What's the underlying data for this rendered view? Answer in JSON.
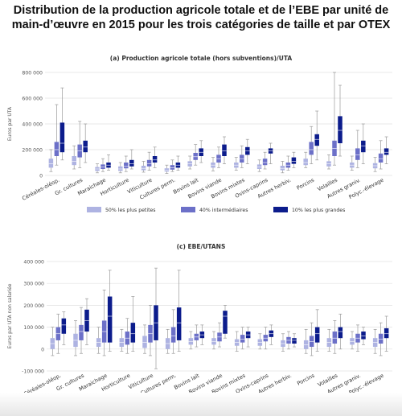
{
  "page": {
    "title_line1": "Distribution de la production agricole totale et de l’EBE par unité de",
    "title_line2": "main-d’œuvre en 2015 pour les trois catégories de taille et par OTEX"
  },
  "chart_data": [
    {
      "type": "boxplot",
      "title": "(a) Production agricole totale (hors subventions)/UTA",
      "ylabel": "Euros par UTA",
      "ylim": [
        0,
        800000
      ],
      "yticks": [
        0,
        200000,
        400000,
        600000,
        800000
      ],
      "ytick_labels": [
        "0",
        "200 000",
        "400 000",
        "600 000",
        "800 000"
      ],
      "grid": true,
      "legend_position": "bottom",
      "colors": {
        "small": "#aeb3e2",
        "mid": "#6c70c8",
        "large": "#0c1c8c"
      },
      "categories": [
        "Céréales-oléop.",
        "Gr. cultures",
        "Maraichage",
        "Horticulture",
        "Viticulture",
        "Cultures perm.",
        "Bovins lait",
        "Bovins viande",
        "Bovins mixtes",
        "Ovins-caprins",
        "Autres herbiv.",
        "Porcins",
        "Volailles",
        "Autres graniv.",
        "Polyc.-élevage"
      ],
      "series": [
        {
          "name": "50% les plus petites",
          "color_key": "small",
          "values": [
            [
              30000,
              60000,
              90000,
              130000,
              200000
            ],
            [
              50000,
              80000,
              110000,
              150000,
              230000
            ],
            [
              20000,
              35000,
              50000,
              65000,
              90000
            ],
            [
              20000,
              35000,
              50000,
              70000,
              100000
            ],
            [
              25000,
              40000,
              55000,
              75000,
              110000
            ],
            [
              15000,
              30000,
              40000,
              55000,
              80000
            ],
            [
              50000,
              70000,
              90000,
              110000,
              150000
            ],
            [
              35000,
              60000,
              80000,
              100000,
              140000
            ],
            [
              40000,
              60000,
              80000,
              100000,
              140000
            ],
            [
              30000,
              50000,
              65000,
              85000,
              120000
            ],
            [
              20000,
              40000,
              55000,
              75000,
              110000
            ],
            [
              60000,
              80000,
              100000,
              130000,
              180000
            ],
            [
              50000,
              70000,
              90000,
              110000,
              160000
            ],
            [
              40000,
              60000,
              80000,
              100000,
              150000
            ],
            [
              30000,
              55000,
              75000,
              95000,
              140000
            ]
          ]
        },
        {
          "name": "40% intermédiaires",
          "color_key": "mid",
          "values": [
            [
              80000,
              150000,
              200000,
              260000,
              550000
            ],
            [
              60000,
              140000,
              190000,
              240000,
              420000
            ],
            [
              30000,
              50000,
              65000,
              85000,
              130000
            ],
            [
              30000,
              55000,
              70000,
              100000,
              150000
            ],
            [
              40000,
              70000,
              90000,
              120000,
              180000
            ],
            [
              30000,
              45000,
              60000,
              80000,
              120000
            ],
            [
              80000,
              120000,
              145000,
              175000,
              240000
            ],
            [
              60000,
              100000,
              130000,
              160000,
              220000
            ],
            [
              60000,
              100000,
              130000,
              160000,
              230000
            ],
            [
              50000,
              80000,
              100000,
              130000,
              180000
            ],
            [
              40000,
              60000,
              80000,
              100000,
              150000
            ],
            [
              90000,
              160000,
              200000,
              260000,
              380000
            ],
            [
              80000,
              150000,
              210000,
              270000,
              800000
            ],
            [
              60000,
              120000,
              160000,
              210000,
              350000
            ],
            [
              50000,
              100000,
              130000,
              170000,
              270000
            ]
          ]
        },
        {
          "name": "10% les plus grandes",
          "color_key": "large",
          "values": [
            [
              120000,
              180000,
              250000,
              410000,
              680000
            ],
            [
              100000,
              180000,
              220000,
              270000,
              400000
            ],
            [
              40000,
              60000,
              80000,
              100000,
              160000
            ],
            [
              50000,
              70000,
              90000,
              120000,
              200000
            ],
            [
              60000,
              100000,
              120000,
              150000,
              220000
            ],
            [
              40000,
              60000,
              80000,
              100000,
              150000
            ],
            [
              100000,
              150000,
              180000,
              210000,
              270000
            ],
            [
              90000,
              150000,
              190000,
              240000,
              300000
            ],
            [
              90000,
              160000,
              190000,
              220000,
              280000
            ],
            [
              90000,
              170000,
              190000,
              210000,
              250000
            ],
            [
              60000,
              90000,
              110000,
              140000,
              180000
            ],
            [
              120000,
              230000,
              280000,
              320000,
              500000
            ],
            [
              150000,
              250000,
              350000,
              460000,
              700000
            ],
            [
              90000,
              180000,
              230000,
              270000,
              400000
            ],
            [
              90000,
              160000,
              180000,
              210000,
              300000
            ]
          ]
        }
      ]
    },
    {
      "type": "boxplot",
      "title": "(c) EBE/UTANS",
      "ylabel": "Euros par UTA non salariée",
      "ylim": [
        -100000,
        400000
      ],
      "yticks": [
        -100000,
        0,
        100000,
        200000,
        300000,
        400000
      ],
      "ytick_labels": [
        "-100 000",
        "0",
        "100 000",
        "200 000",
        "300 000",
        "400 000"
      ],
      "grid": true,
      "legend_position": "bottom",
      "colors": {
        "small": "#aeb3e2",
        "mid": "#6c70c8",
        "large": "#0c1c8c"
      },
      "categories": [
        "Céréales-oléop.",
        "Gr. cultures",
        "Maraichage",
        "Horticulture",
        "Viticulture",
        "Cultures perm.",
        "Bovins lait",
        "Bovins viande",
        "Bovins mixtes",
        "Ovins-caprins",
        "Autres herbiv.",
        "Porcins",
        "Volailles",
        "Autres graniv.",
        "Polyc.-élevage"
      ],
      "series": [
        {
          "name": "50% les plus petites",
          "color_key": "small",
          "values": [
            [
              -30000,
              0,
              25000,
              50000,
              100000
            ],
            [
              -30000,
              10000,
              40000,
              70000,
              130000
            ],
            [
              -20000,
              10000,
              30000,
              50000,
              100000
            ],
            [
              -10000,
              10000,
              30000,
              50000,
              90000
            ],
            [
              -20000,
              5000,
              30000,
              60000,
              110000
            ],
            [
              -20000,
              0,
              25000,
              50000,
              90000
            ],
            [
              0,
              20000,
              35000,
              50000,
              80000
            ],
            [
              0,
              20000,
              35000,
              50000,
              80000
            ],
            [
              -10000,
              15000,
              30000,
              45000,
              80000
            ],
            [
              0,
              15000,
              30000,
              45000,
              70000
            ],
            [
              -10000,
              10000,
              25000,
              40000,
              70000
            ],
            [
              -20000,
              0,
              20000,
              40000,
              90000
            ],
            [
              -10000,
              10000,
              30000,
              50000,
              90000
            ],
            [
              0,
              20000,
              35000,
              50000,
              80000
            ],
            [
              -20000,
              10000,
              30000,
              50000,
              90000
            ]
          ]
        },
        {
          "name": "40% intermédiaires",
          "color_key": "mid",
          "values": [
            [
              -20000,
              40000,
              70000,
              100000,
              160000
            ],
            [
              -20000,
              40000,
              80000,
              110000,
              190000
            ],
            [
              -30000,
              30000,
              80000,
              130000,
              270000
            ],
            [
              -20000,
              20000,
              50000,
              80000,
              140000
            ],
            [
              -30000,
              30000,
              70000,
              110000,
              200000
            ],
            [
              -20000,
              30000,
              60000,
              100000,
              180000
            ],
            [
              10000,
              40000,
              55000,
              70000,
              110000
            ],
            [
              10000,
              35000,
              55000,
              75000,
              120000
            ],
            [
              0,
              30000,
              45000,
              65000,
              100000
            ],
            [
              0,
              35000,
              50000,
              65000,
              100000
            ],
            [
              0,
              25000,
              40000,
              55000,
              80000
            ],
            [
              -30000,
              10000,
              35000,
              60000,
              120000
            ],
            [
              -20000,
              25000,
              50000,
              80000,
              130000
            ],
            [
              -10000,
              30000,
              50000,
              70000,
              110000
            ],
            [
              -30000,
              25000,
              45000,
              70000,
              120000
            ]
          ]
        },
        {
          "name": "10% les plus grandes",
          "color_key": "large",
          "values": [
            [
              20000,
              70000,
              110000,
              140000,
              170000
            ],
            [
              20000,
              80000,
              130000,
              180000,
              230000
            ],
            [
              -10000,
              30000,
              150000,
              240000,
              360000
            ],
            [
              -10000,
              30000,
              70000,
              120000,
              240000
            ],
            [
              -90000,
              40000,
              120000,
              200000,
              370000
            ],
            [
              -10000,
              40000,
              120000,
              190000,
              360000
            ],
            [
              20000,
              50000,
              65000,
              80000,
              110000
            ],
            [
              50000,
              70000,
              150000,
              175000,
              200000
            ],
            [
              10000,
              50000,
              65000,
              80000,
              100000
            ],
            [
              20000,
              55000,
              70000,
              85000,
              110000
            ],
            [
              10000,
              25000,
              40000,
              50000,
              70000
            ],
            [
              -10000,
              30000,
              70000,
              100000,
              180000
            ],
            [
              0,
              50000,
              80000,
              100000,
              160000
            ],
            [
              20000,
              45000,
              60000,
              80000,
              100000
            ],
            [
              -10000,
              50000,
              70000,
              95000,
              150000
            ]
          ]
        }
      ]
    }
  ]
}
